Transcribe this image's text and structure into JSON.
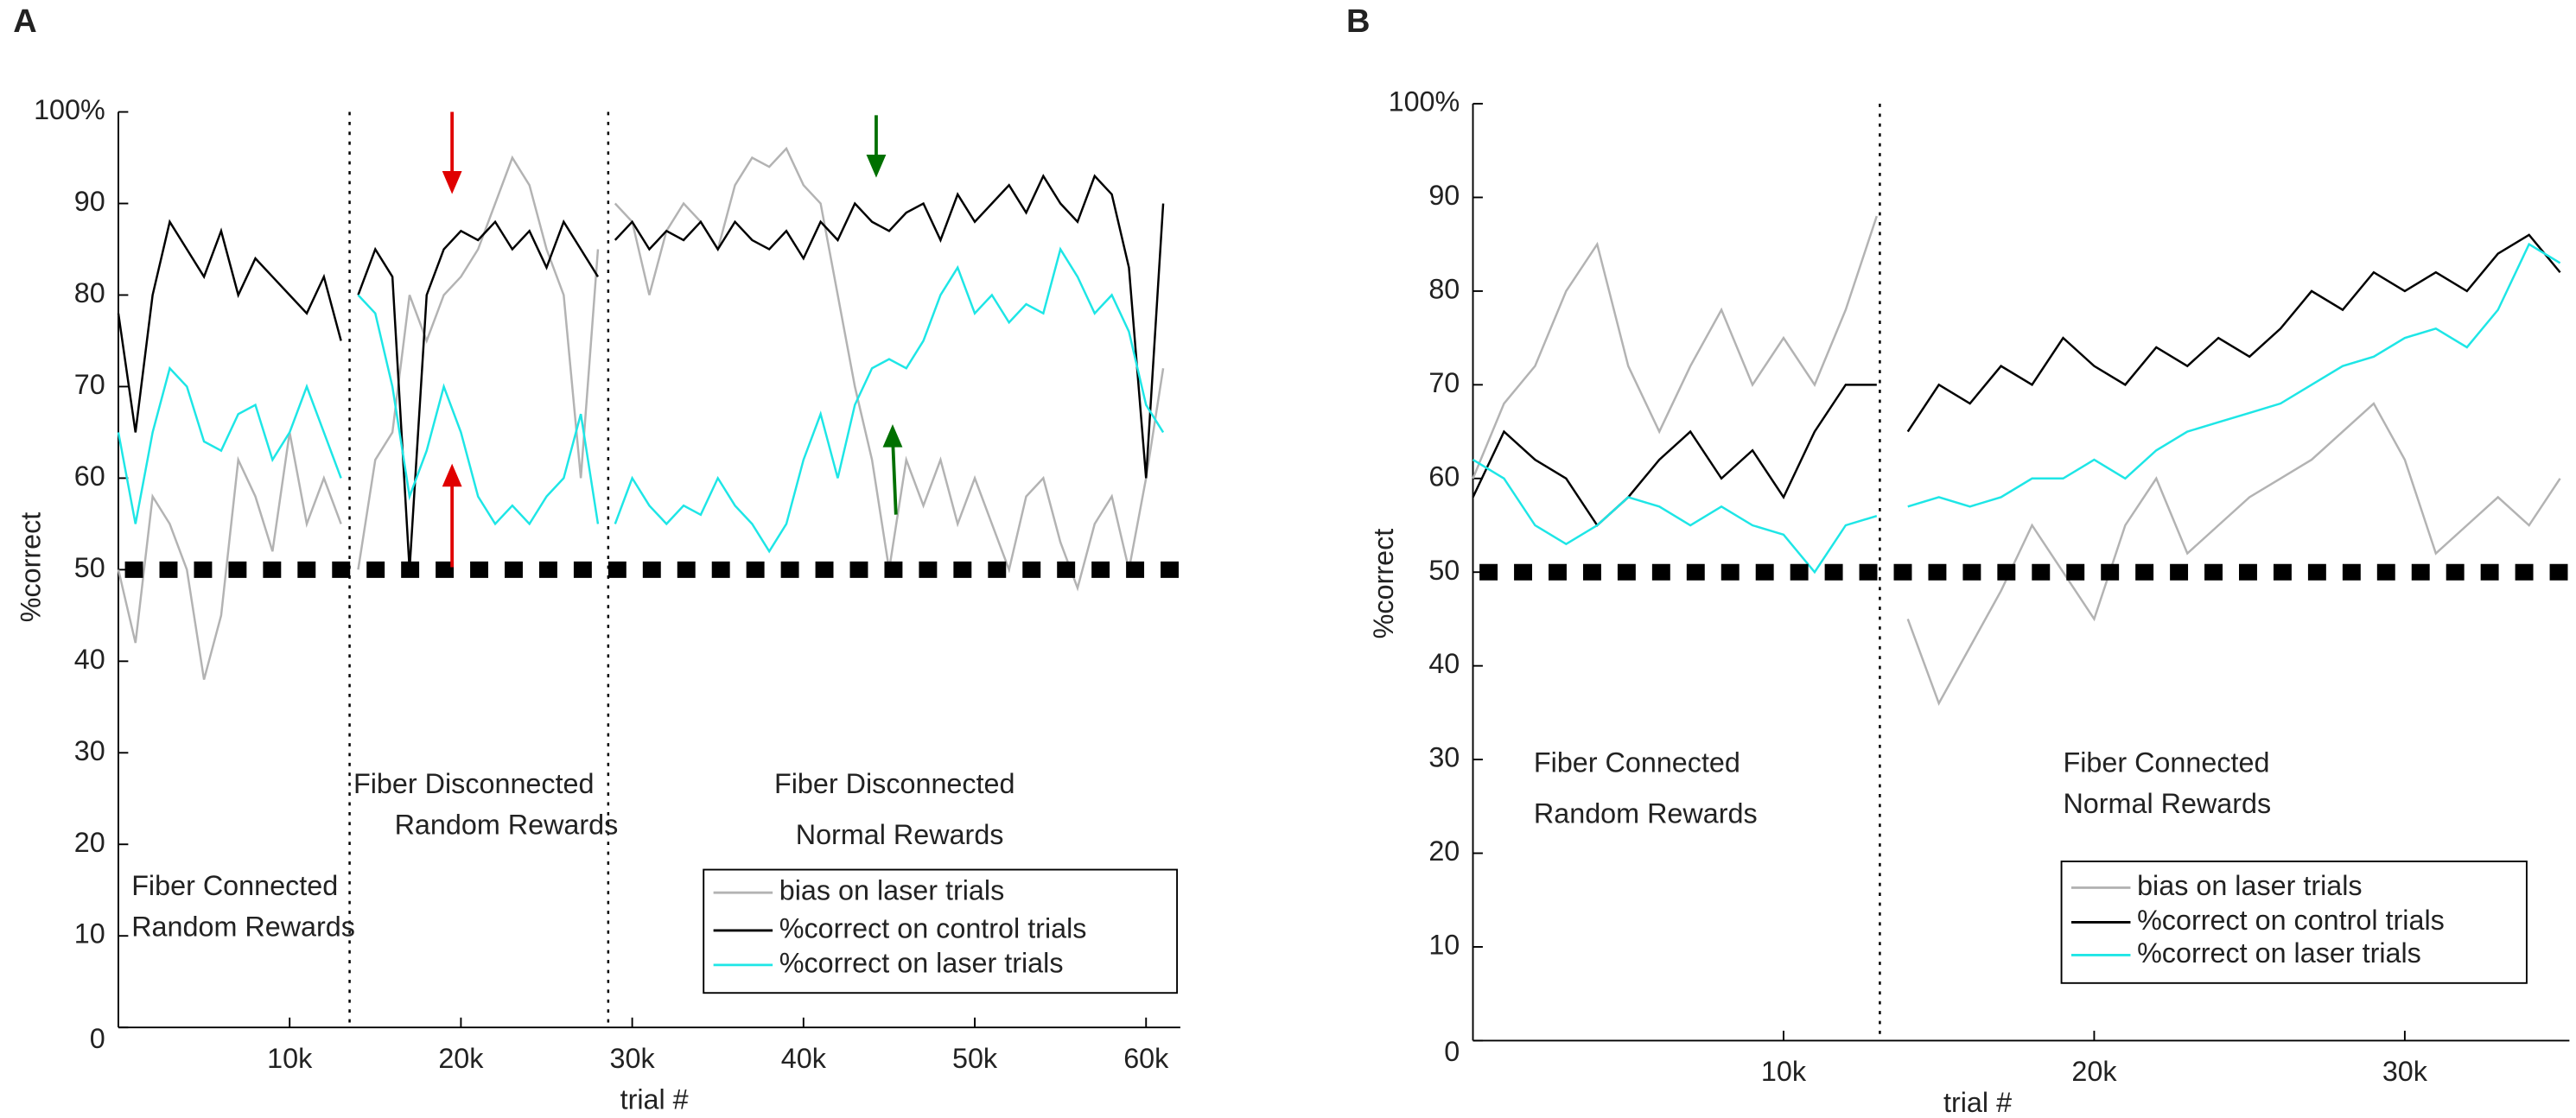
{
  "chart_data": [
    {
      "type": "line",
      "panel_label": "A",
      "xlabel": "trial #",
      "ylabel": "%correct",
      "xlim": [
        0,
        62000
      ],
      "ylim": [
        0,
        100
      ],
      "xticks": [
        {
          "value": 10000,
          "label": "10k"
        },
        {
          "value": 20000,
          "label": "20k"
        },
        {
          "value": 30000,
          "label": "30k"
        },
        {
          "value": 40000,
          "label": "40k"
        },
        {
          "value": 50000,
          "label": "50k"
        },
        {
          "value": 60000,
          "label": "60k"
        }
      ],
      "yticks": [
        0,
        10,
        20,
        30,
        40,
        50,
        60,
        70,
        80,
        90,
        {
          "value": 100,
          "label": "100%"
        }
      ],
      "reference_y": 50,
      "vlines": [
        13500,
        28600
      ],
      "legend": "lower right",
      "annotations": [
        "Fiber Connected",
        "Random Rewards",
        "Fiber Disconnected",
        "Random Rewards",
        "Fiber Disconnected",
        "Normal Rewards"
      ],
      "x": [
        0,
        1000,
        2000,
        3000,
        4000,
        5000,
        6000,
        7000,
        8000,
        9000,
        10000,
        11000,
        12000,
        13000,
        13500,
        14000,
        15000,
        16000,
        17000,
        18000,
        19000,
        20000,
        21000,
        22000,
        23000,
        24000,
        25000,
        26000,
        27000,
        28000,
        28600,
        29000,
        30000,
        31000,
        32000,
        33000,
        34000,
        35000,
        36000,
        37000,
        38000,
        39000,
        40000,
        41000,
        42000,
        43000,
        44000,
        45000,
        46000,
        47000,
        48000,
        49000,
        50000,
        51000,
        52000,
        53000,
        54000,
        55000,
        56000,
        57000,
        58000,
        59000,
        60000,
        61000
      ],
      "series": [
        {
          "name": "bias on laser trials",
          "color": "#b3b3b3",
          "values": [
            50,
            42,
            58,
            55,
            50,
            38,
            45,
            62,
            58,
            52,
            65,
            55,
            60,
            55,
            null,
            50,
            62,
            65,
            80,
            75,
            80,
            82,
            85,
            90,
            95,
            92,
            85,
            80,
            60,
            85,
            null,
            90,
            88,
            80,
            87,
            90,
            88,
            85,
            92,
            95,
            94,
            96,
            92,
            90,
            80,
            70,
            62,
            50,
            62,
            57,
            62,
            55,
            60,
            55,
            50,
            58,
            60,
            53,
            48,
            55,
            58,
            50,
            60,
            72
          ]
        },
        {
          "name": "%correct on control trials",
          "color": "#000000",
          "values": [
            78,
            65,
            80,
            88,
            85,
            82,
            87,
            80,
            84,
            82,
            80,
            78,
            82,
            75,
            null,
            80,
            85,
            82,
            50,
            80,
            85,
            87,
            86,
            88,
            85,
            87,
            83,
            88,
            85,
            82,
            null,
            86,
            88,
            85,
            87,
            86,
            88,
            85,
            88,
            86,
            85,
            87,
            84,
            88,
            86,
            90,
            88,
            87,
            89,
            90,
            86,
            91,
            88,
            90,
            92,
            89,
            93,
            90,
            88,
            93,
            91,
            83,
            60,
            90
          ]
        },
        {
          "name": "%correct on laser trials",
          "color": "#1ee6e6",
          "values": [
            65,
            55,
            65,
            72,
            70,
            64,
            63,
            67,
            68,
            62,
            65,
            70,
            65,
            60,
            null,
            80,
            78,
            70,
            58,
            63,
            70,
            65,
            58,
            55,
            57,
            55,
            58,
            60,
            67,
            55,
            null,
            55,
            60,
            57,
            55,
            57,
            56,
            60,
            57,
            55,
            52,
            55,
            62,
            67,
            60,
            68,
            72,
            73,
            72,
            75,
            80,
            83,
            78,
            80,
            77,
            79,
            78,
            85,
            82,
            78,
            80,
            76,
            68,
            65
          ]
        }
      ]
    },
    {
      "type": "line",
      "panel_label": "B",
      "xlabel": "trial #",
      "ylabel": "%correct",
      "xlim": [
        0,
        35300
      ],
      "ylim": [
        0,
        100
      ],
      "xticks": [
        {
          "value": 10000,
          "label": "10k"
        },
        {
          "value": 20000,
          "label": "20k"
        },
        {
          "value": 30000,
          "label": "30k"
        }
      ],
      "yticks": [
        0,
        10,
        20,
        30,
        40,
        50,
        60,
        70,
        80,
        90,
        {
          "value": 100,
          "label": "100%"
        }
      ],
      "reference_y": 50,
      "vlines": [
        13100
      ],
      "legend": "lower right",
      "annotations": [
        "Fiber Connected",
        "Random Rewards",
        "Fiber Connected",
        "Normal Rewards"
      ],
      "x": [
        0,
        1000,
        2000,
        3000,
        4000,
        5000,
        6000,
        7000,
        8000,
        9000,
        10000,
        11000,
        12000,
        13000,
        13100,
        14000,
        15000,
        16000,
        17000,
        18000,
        19000,
        20000,
        21000,
        22000,
        23000,
        24000,
        25000,
        26000,
        27000,
        28000,
        29000,
        30000,
        31000,
        32000,
        33000,
        34000,
        35000
      ],
      "series": [
        {
          "name": "bias on laser trials",
          "color": "#b3b3b3",
          "values": [
            60,
            68,
            72,
            80,
            85,
            72,
            65,
            72,
            78,
            70,
            75,
            70,
            78,
            88,
            null,
            45,
            36,
            42,
            48,
            55,
            50,
            45,
            55,
            60,
            52,
            55,
            58,
            60,
            62,
            65,
            68,
            62,
            52,
            55,
            58,
            55,
            60
          ]
        },
        {
          "name": "%correct on control trials",
          "color": "#000000",
          "values": [
            58,
            65,
            62,
            60,
            55,
            58,
            62,
            65,
            60,
            63,
            58,
            65,
            70,
            70,
            null,
            65,
            70,
            68,
            72,
            70,
            75,
            72,
            70,
            74,
            72,
            75,
            73,
            76,
            80,
            78,
            82,
            80,
            82,
            80,
            84,
            86,
            82
          ]
        },
        {
          "name": "%correct on laser trials",
          "color": "#1ee6e6",
          "values": [
            62,
            60,
            55,
            53,
            55,
            58,
            57,
            55,
            57,
            55,
            54,
            50,
            55,
            56,
            null,
            57,
            58,
            57,
            58,
            60,
            60,
            62,
            60,
            63,
            65,
            66,
            67,
            68,
            70,
            72,
            73,
            75,
            76,
            74,
            78,
            85,
            83
          ]
        }
      ]
    }
  ]
}
